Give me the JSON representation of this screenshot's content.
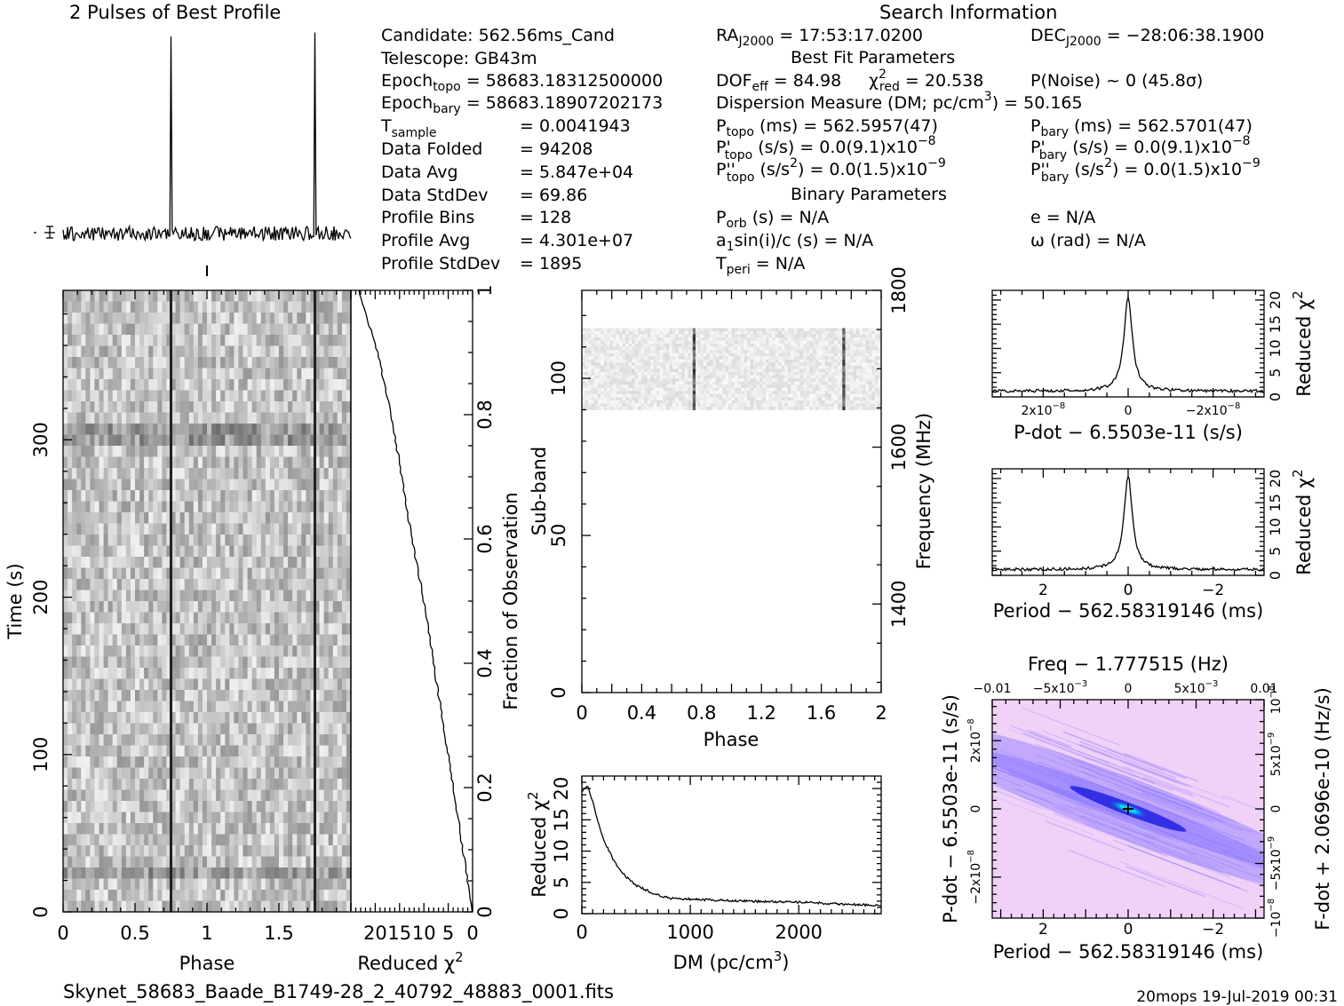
{
  "profile_title": "2 Pulses of Best Profile",
  "search_title": "Search Information",
  "filename": "Skynet_58683_Baade_B1749-28_2_40792_48883_0001.fits",
  "footer": "20mops 19-Jul-2019 00:31",
  "info": {
    "candidate": "Candidate:  562.56ms_Cand",
    "telescope": "Telescope:  GB43m",
    "epoch_topo_label": "Epoch",
    "epoch_topo_sub": "topo",
    "epoch_topo_val": "= 58683.18312500000",
    "epoch_bary_label": "Epoch",
    "epoch_bary_sub": "bary",
    "epoch_bary_val": "= 58683.18907202173",
    "tsample_label": "T",
    "tsample_sub": "sample",
    "tsample_val": "=   0.0041943",
    "data_folded": "Data Folded",
    "data_folded_val": "=   94208",
    "data_avg": "Data Avg",
    "data_avg_val": "=   5.847e+04",
    "data_std": "Data StdDev",
    "data_std_val": "=   69.86",
    "prof_bins": "Profile Bins",
    "prof_bins_val": "=   128",
    "prof_avg": "Profile Avg",
    "prof_avg_val": "=   4.301e+07",
    "prof_std": "Profile StdDev",
    "prof_std_val": "=   1895"
  },
  "search": {
    "ra_label": "RA",
    "ra_sub": "J2000",
    "ra_val": " = 17:53:17.0200",
    "dec_label": "DEC",
    "dec_sub": "J2000",
    "dec_val": " = −28:06:38.1900",
    "best_fit": "Best Fit Parameters",
    "dof_label": "DOF",
    "dof_sub": "eff",
    "dof_val": " = 84.98",
    "chi_label": "χ",
    "chi_sup": "2",
    "chi_sub": "red",
    "chi_val": " = 20.538",
    "pnoise": "P(Noise) ~ 0   (45.8σ)",
    "dm_text": "Dispersion Measure (DM; pc/cm",
    "dm_sup": "3",
    "dm_val": ") = 50.165",
    "ptopo_label": "P",
    "ptopo_sub": "topo",
    "ptopo_val": " (ms) =  562.5957(47)",
    "pbary_label": "P",
    "pbary_sub": "bary",
    "pbary_val": " (ms) =  562.5701(47)",
    "pdtopo_label": "P'",
    "pdtopo_sub": "topo",
    "pdtopo_val": " (s/s) = 0.0(9.1)x10",
    "pdtopo_exp": "−8",
    "pdbary_label": "P'",
    "pdbary_sub": "bary",
    "pdbary_val": " (s/s) = 0.0(9.1)x10",
    "pdbary_exp": "−8",
    "pddtopo_label": "P''",
    "pddtopo_sub": "topo",
    "pddtopo_val": " (s/s",
    "pddtopo_sup": "2",
    "pddtopo_val2": ") = 0.0(1.5)x10",
    "pddtopo_exp": "−9",
    "pddbary_label": "P''",
    "pddbary_sub": "bary",
    "pddbary_val": " (s/s",
    "pddbary_sup": "2",
    "pddbary_val2": ") = 0.0(1.5)x10",
    "pddbary_exp": "−9",
    "binary": "Binary Parameters",
    "porb_label": "P",
    "porb_sub": "orb",
    "porb_val": " (s) = N/A",
    "ecc": "e = N/A",
    "a1_label": "a",
    "a1_sub": "1",
    "a1_val": "sin(i)/c (s) = N/A",
    "omega": "ω (rad) = N/A",
    "tperi_label": "T",
    "tperi_sub": "peri",
    "tperi_val": " = N/A"
  },
  "chart_data": [
    {
      "id": "profile",
      "type": "line",
      "title": "2 Pulses of Best Profile",
      "x_range": [
        0,
        2
      ],
      "pulse_phases": [
        0.75,
        1.75
      ],
      "baseline": 0.06,
      "peak": 1.0
    },
    {
      "id": "time_phase",
      "type": "heatmap",
      "xlabel": "Phase",
      "ylabel": "Time (s)",
      "x_range": [
        0,
        2
      ],
      "y_range": [
        0,
        395
      ],
      "xticks": [
        "0",
        "0.5",
        "1",
        "1.5"
      ],
      "xtick_values": [
        0,
        0.5,
        1,
        1.5
      ],
      "yticks": [
        "0",
        "100",
        "200",
        "300"
      ],
      "ytick_values": [
        0,
        100,
        200,
        300
      ],
      "pulse_phases": [
        0.75,
        1.75
      ]
    },
    {
      "id": "chi_vs_time",
      "type": "line",
      "xlabel": "Reduced ",
      "xlabel_chi": "χ",
      "xlabel_sup": "2",
      "ylabel_right": "Fraction of Observation",
      "x_range": [
        0,
        25
      ],
      "xticks": [
        "20",
        "15",
        "10",
        "5",
        "0"
      ],
      "xtick_values": [
        20,
        15,
        10,
        5,
        0
      ],
      "yticks": [
        "0",
        "0.2",
        "0.4",
        "0.6",
        "0.8",
        "1"
      ],
      "ytick_values": [
        0,
        0.2,
        0.4,
        0.6,
        0.8,
        1
      ],
      "fraction": [
        0,
        0.05,
        0.1,
        0.2,
        0.3,
        0.4,
        0.5,
        0.6,
        0.7,
        0.8,
        0.9,
        0.95,
        1.0
      ],
      "reduced_chi2": [
        0.2,
        1.0,
        2.0,
        4.0,
        6.0,
        8.0,
        10.0,
        12.5,
        14.5,
        16.8,
        19.5,
        21.5,
        23.5
      ]
    },
    {
      "id": "subband_phase",
      "type": "heatmap",
      "xlabel": "Phase",
      "ylabel": "Sub-band",
      "ylabel_right": "Frequency (MHz)",
      "x_range": [
        0,
        2
      ],
      "y_range": [
        0,
        128
      ],
      "xticks": [
        "0",
        "0.4",
        "0.8",
        "1.2",
        "1.6",
        "2"
      ],
      "xtick_values": [
        0,
        0.4,
        0.8,
        1.2,
        1.6,
        2
      ],
      "yticks": [
        "0",
        "50",
        "100"
      ],
      "ytick_values": [
        0,
        50,
        100
      ],
      "freq_ticks": [
        "1400",
        "1600",
        "1800"
      ],
      "freq_tick_values": [
        1400,
        1600,
        1800
      ],
      "freq_range": [
        1287,
        1800
      ],
      "band_range": [
        90,
        116
      ],
      "pulse_phases": [
        0.75,
        1.75
      ]
    },
    {
      "id": "chi_vs_dm",
      "type": "line",
      "xlabel": "DM (pc/cm",
      "xlabel_sup": "3",
      "xlabel_end": ")",
      "ylabel": "Reduced ",
      "ylabel_chi": "χ",
      "ylabel_sup": "2",
      "x_range": [
        0,
        2760
      ],
      "y_range": [
        0,
        22
      ],
      "xticks": [
        "0",
        "1000",
        "2000"
      ],
      "xtick_values": [
        0,
        1000,
        2000
      ],
      "yticks": [
        "0",
        "5",
        "10",
        "15",
        "20"
      ],
      "ytick_values": [
        0,
        5,
        10,
        15,
        20
      ],
      "dm": [
        0,
        50,
        100,
        150,
        200,
        300,
        400,
        500,
        600,
        700,
        800,
        1000,
        1200,
        1500,
        1800,
        2100,
        2400,
        2760
      ],
      "reduced_chi2": [
        19.5,
        20.5,
        18.0,
        14.5,
        11.8,
        8.3,
        6.0,
        4.5,
        3.7,
        3.0,
        2.5,
        2.3,
        2.2,
        2.0,
        1.9,
        1.8,
        1.5,
        1.3
      ]
    },
    {
      "id": "chi_vs_pdot",
      "type": "line",
      "xlabel": "P-dot − 6.5503e-11 (s/s)",
      "ylabel_right": "Reduced ",
      "ylabel_chi": "χ",
      "ylabel_sup": "2",
      "x_range": [
        3.2e-08,
        -3.2e-08
      ],
      "y_range": [
        0,
        22
      ],
      "xtick_values": [
        2e-08,
        0,
        -2e-08
      ],
      "xtick_mant": [
        "2x10",
        "0",
        "−2x10"
      ],
      "xtick_exp": [
        "−8",
        "",
        "−8"
      ],
      "yticks": [
        "0",
        "5",
        "10",
        "15",
        "20"
      ],
      "ytick_values": [
        0,
        5,
        10,
        15,
        20
      ],
      "peak_x": 0,
      "peak_y": 20.5,
      "floor_y": 1.2
    },
    {
      "id": "chi_vs_period",
      "type": "line",
      "xlabel": "Period − 562.58319146 (ms)",
      "ylabel_right": "Reduced ",
      "ylabel_chi": "χ",
      "ylabel_sup": "2",
      "x_range": [
        3.2,
        -3.2
      ],
      "y_range": [
        0,
        22
      ],
      "xticks": [
        "2",
        "0",
        "−2"
      ],
      "xtick_values": [
        2,
        0,
        -2
      ],
      "yticks": [
        "0",
        "5",
        "10",
        "15",
        "20"
      ],
      "ytick_values": [
        0,
        5,
        10,
        15,
        20
      ],
      "peak_x": 0,
      "peak_y": 20.5,
      "floor_y": 1.2
    },
    {
      "id": "ppdot",
      "type": "heatmap",
      "title": "Freq − 1.777515 (Hz)",
      "xlabel": "Period − 562.58319146 (ms)",
      "ylabel": "P-dot − 6.5503e-11 (s/s)",
      "ylabel_right": "F-dot + 2.0696e-10 (Hz/s)",
      "x_range": [
        3.2,
        -3.2
      ],
      "y_range": [
        3.2e-08,
        -3.2e-08
      ],
      "xticks": [
        "2",
        "0",
        "−2"
      ],
      "xtick_values": [
        2,
        0,
        -2
      ],
      "top_range": [
        -0.01,
        0.01
      ],
      "top_tick_values": [
        -0.01,
        -0.005,
        0,
        0.005,
        0.01
      ],
      "top_tick_mant": [
        "−0.01",
        "−5x10",
        "0",
        "5x10",
        "0.01"
      ],
      "top_tick_exp": [
        "",
        "−3",
        "",
        "−3",
        ""
      ],
      "left_tick_values": [
        -2e-08,
        0,
        2e-08
      ],
      "left_tick_mant": [
        "−2x10",
        "0",
        "2x10"
      ],
      "left_tick_exp": [
        "−8",
        "",
        "−8"
      ],
      "right_range": [
        1e-08,
        -1e-08
      ],
      "right_tick_values": [
        1e-08,
        5e-09,
        0,
        -5e-09,
        -1e-08
      ],
      "right_tick_mant": [
        "10",
        "5x10",
        "0",
        "−5x10",
        "−10"
      ],
      "right_tick_exp": [
        "−8",
        "−9",
        "",
        "−9",
        "−8"
      ],
      "best_period": 0,
      "best_pdot": 0,
      "colors": {
        "background": "#f0d2f8",
        "mid": "#8c78ff",
        "ridge": "#2020e0",
        "core": "#00d8f0"
      }
    }
  ]
}
